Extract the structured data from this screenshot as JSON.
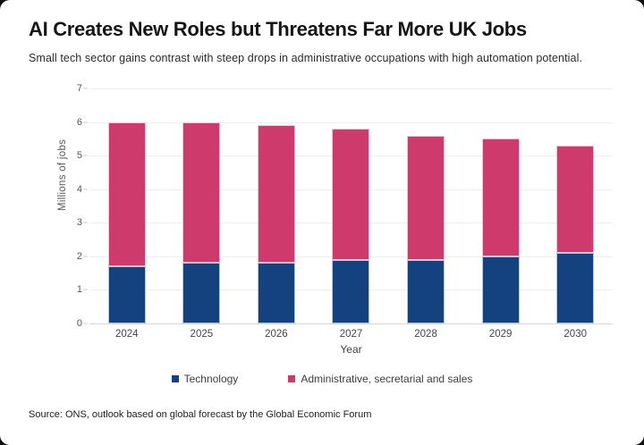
{
  "card": {
    "title": "AI Creates New Roles but Threatens Far More UK Jobs",
    "subtitle": "Small tech sector gains contrast with steep drops in administrative occupations with high automation potential.",
    "source": "Source: ONS, outlook based on global forecast by the Global Economic Forum"
  },
  "chart_data": {
    "type": "bar",
    "stacked": true,
    "title": "AI Creates New Roles but Threatens Far More UK Jobs",
    "subtitle": "Small tech sector gains contrast with steep drops in administrative occupations with high automation potential.",
    "categories": [
      "2024",
      "2025",
      "2026",
      "2027",
      "2028",
      "2029",
      "2030"
    ],
    "series": [
      {
        "name": "Technology",
        "color": "#13427f",
        "values": [
          1.7,
          1.8,
          1.8,
          1.9,
          1.9,
          2.0,
          2.1
        ]
      },
      {
        "name": "Administrative, secretarial and sales",
        "color": "#ce3a6c",
        "values": [
          4.3,
          4.2,
          4.1,
          3.9,
          3.7,
          3.5,
          3.2
        ]
      }
    ],
    "stack_totals": [
      6.0,
      6.0,
      5.9,
      5.8,
      5.6,
      5.5,
      5.3
    ],
    "xlabel": "Year",
    "ylabel": "Millions of jobs",
    "ylim": [
      0,
      7
    ],
    "yticks": [
      0,
      1,
      2,
      3,
      4,
      5,
      6,
      7
    ],
    "grid": true,
    "legend_position": "bottom"
  },
  "colors": {
    "technology": "#13427f",
    "administrative": "#ce3a6c",
    "gridline": "#eeeeee",
    "zero_line": "#d6d6d6"
  }
}
